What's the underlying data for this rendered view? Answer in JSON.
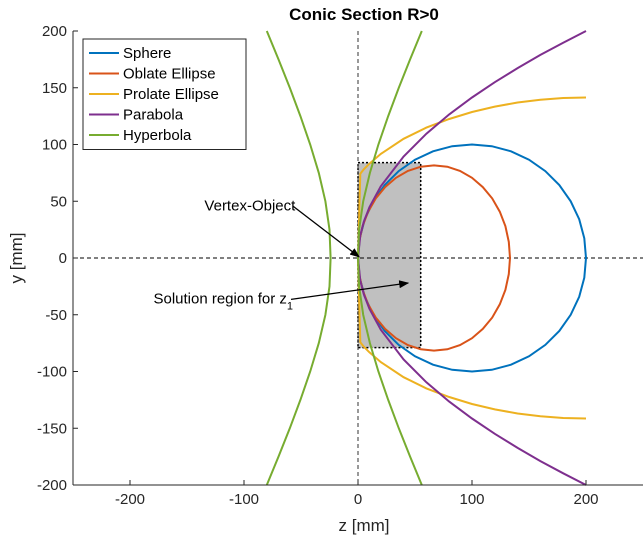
{
  "chart_data": {
    "type": "line",
    "title": "Conic Section R>0",
    "xlabel": "z [mm]",
    "ylabel": "y [mm]",
    "xlim": [
      -250,
      250
    ],
    "ylim": [
      -200,
      200
    ],
    "xticks": [
      -200,
      -100,
      0,
      100,
      200
    ],
    "yticks": [
      200,
      150,
      100,
      50,
      0,
      -50,
      -100,
      -150,
      -200
    ],
    "xtick_labels": [
      "-200",
      "-100",
      "0",
      "100",
      "200"
    ],
    "ytick_labels": [
      "200",
      "150",
      "100",
      "50",
      "0",
      "-50",
      "-100",
      "-150",
      "-200"
    ],
    "grid": false,
    "legend_position": "top-left",
    "series": [
      {
        "name": "Sphere",
        "color": "#0072bd",
        "points": [
          [
            200,
            0
          ],
          [
            198.5,
            17.4
          ],
          [
            194,
            34.2
          ],
          [
            186.6,
            50
          ],
          [
            176.6,
            64.3
          ],
          [
            164.3,
            76.6
          ],
          [
            150,
            86.6
          ],
          [
            134.2,
            94
          ],
          [
            117.4,
            98.5
          ],
          [
            100,
            100
          ],
          [
            82.6,
            98.5
          ],
          [
            65.8,
            94
          ],
          [
            50,
            86.6
          ],
          [
            35.7,
            76.6
          ],
          [
            23.4,
            64.3
          ],
          [
            13.4,
            50
          ],
          [
            6,
            34.2
          ],
          [
            1.5,
            17.4
          ],
          [
            0,
            0
          ],
          [
            1.5,
            -17.4
          ],
          [
            6,
            -34.2
          ],
          [
            13.4,
            -50
          ],
          [
            23.4,
            -64.3
          ],
          [
            35.7,
            -76.6
          ],
          [
            50,
            -86.6
          ],
          [
            65.8,
            -94
          ],
          [
            82.6,
            -98.5
          ],
          [
            100,
            -100
          ],
          [
            117.4,
            -98.5
          ],
          [
            134.2,
            -94
          ],
          [
            150,
            -86.6
          ],
          [
            164.3,
            -76.6
          ],
          [
            176.6,
            -64.3
          ],
          [
            186.6,
            -50
          ],
          [
            194,
            -34.2
          ],
          [
            198.5,
            -17.4
          ],
          [
            200,
            0
          ]
        ]
      },
      {
        "name": "Oblate Ellipse",
        "color": "#d95319",
        "points": [
          [
            133.3,
            0
          ],
          [
            132.3,
            14.2
          ],
          [
            129.3,
            28
          ],
          [
            124.4,
            40.8
          ],
          [
            117.7,
            52.5
          ],
          [
            109.5,
            62.5
          ],
          [
            100,
            70.7
          ],
          [
            89.5,
            76.7
          ],
          [
            78.3,
            80.4
          ],
          [
            66.7,
            81.6
          ],
          [
            55.1,
            80.4
          ],
          [
            43.8,
            76.7
          ],
          [
            33.3,
            70.7
          ],
          [
            23.8,
            62.5
          ],
          [
            15.6,
            52.5
          ],
          [
            8.9,
            40.8
          ],
          [
            4,
            28
          ],
          [
            1,
            14.2
          ],
          [
            0,
            0
          ],
          [
            1,
            -14.2
          ],
          [
            4,
            -28
          ],
          [
            8.9,
            -40.8
          ],
          [
            15.6,
            -52.5
          ],
          [
            23.8,
            -62.5
          ],
          [
            33.3,
            -70.7
          ],
          [
            43.8,
            -76.7
          ],
          [
            55.1,
            -80.4
          ],
          [
            66.7,
            -81.6
          ],
          [
            78.3,
            -80.4
          ],
          [
            89.5,
            -76.7
          ],
          [
            100,
            -70.7
          ],
          [
            109.5,
            -62.5
          ],
          [
            117.7,
            -52.5
          ],
          [
            124.4,
            -40.8
          ],
          [
            129.3,
            -28
          ],
          [
            132.3,
            -14.2
          ],
          [
            133.3,
            0
          ]
        ]
      },
      {
        "name": "Prolate Ellipse",
        "color": "#edb120",
        "points": [
          [
            200,
            -141.4
          ],
          [
            180,
            -141
          ],
          [
            160,
            -139.5
          ],
          [
            140,
            -137
          ],
          [
            120,
            -133.4
          ],
          [
            100,
            -128.6
          ],
          [
            80,
            -122.5
          ],
          [
            60,
            -114.9
          ],
          [
            40,
            -105
          ],
          [
            20,
            -91.7
          ],
          [
            10,
            -83.1
          ],
          [
            5,
            -78.1
          ],
          [
            2,
            -74.3
          ],
          [
            0,
            0
          ],
          [
            2,
            74.3
          ],
          [
            5,
            78.1
          ],
          [
            10,
            83.1
          ],
          [
            20,
            91.7
          ],
          [
            40,
            105
          ],
          [
            60,
            114.9
          ],
          [
            80,
            122.5
          ],
          [
            100,
            128.6
          ],
          [
            120,
            133.4
          ],
          [
            140,
            137
          ],
          [
            160,
            139.5
          ],
          [
            180,
            141
          ],
          [
            200,
            141.4
          ]
        ]
      },
      {
        "name": "Parabola",
        "color": "#7e2f8e",
        "points": [
          [
            200,
            -200
          ],
          [
            180,
            -189.7
          ],
          [
            160,
            -178.9
          ],
          [
            140,
            -167.3
          ],
          [
            120,
            -154.9
          ],
          [
            100,
            -141.4
          ],
          [
            80,
            -126.5
          ],
          [
            60,
            -109.5
          ],
          [
            40,
            -89.4
          ],
          [
            20,
            -63.2
          ],
          [
            10,
            -44.7
          ],
          [
            5,
            -31.6
          ],
          [
            2,
            -20
          ],
          [
            0,
            0
          ],
          [
            2,
            20
          ],
          [
            5,
            31.6
          ],
          [
            10,
            44.7
          ],
          [
            20,
            63.2
          ],
          [
            40,
            89.4
          ],
          [
            60,
            109.5
          ],
          [
            80,
            126.5
          ],
          [
            100,
            141.4
          ],
          [
            120,
            154.9
          ],
          [
            140,
            167.3
          ],
          [
            160,
            178.9
          ],
          [
            180,
            189.7
          ],
          [
            200,
            200
          ]
        ]
      },
      {
        "name": "Hyperbola",
        "color": "#77ac30",
        "points": [
          [
            -80,
            200
          ],
          [
            -69.7,
            175
          ],
          [
            -59.8,
            150
          ],
          [
            -50.5,
            125
          ],
          [
            -41.9,
            100
          ],
          [
            -34.4,
            75
          ],
          [
            -28.6,
            50
          ],
          [
            -25,
            25
          ],
          [
            -24,
            0
          ],
          [
            -25,
            -25
          ],
          [
            -28.6,
            -50
          ],
          [
            -34.4,
            -75
          ],
          [
            -41.9,
            -100
          ],
          [
            -50.5,
            -125
          ],
          [
            -59.8,
            -150
          ],
          [
            -69.7,
            -175
          ],
          [
            -80,
            -200
          ]
        ]
      },
      {
        "name": "Hyperbola",
        "color": "#77ac30",
        "legend": false,
        "points": [
          [
            56,
            200
          ],
          [
            45.7,
            175
          ],
          [
            35.8,
            150
          ],
          [
            26.5,
            125
          ],
          [
            17.9,
            100
          ],
          [
            10.4,
            75
          ],
          [
            4.6,
            50
          ],
          [
            1,
            25
          ],
          [
            0,
            0
          ],
          [
            1,
            -25
          ],
          [
            4.6,
            -50
          ],
          [
            10.4,
            -75
          ],
          [
            17.9,
            -100
          ],
          [
            26.5,
            -125
          ],
          [
            35.8,
            -150
          ],
          [
            45.7,
            -175
          ],
          [
            56,
            -200
          ]
        ]
      }
    ],
    "reference_lines": [
      {
        "axis": "x",
        "value": 0,
        "style": "dashed",
        "color": "#333333"
      },
      {
        "axis": "y",
        "value": 0,
        "style": "dashed",
        "color": "#000000"
      }
    ],
    "region": {
      "z": [
        0,
        55
      ],
      "y": [
        -79,
        84
      ],
      "fill": "#c0c0c0",
      "border": "dotted"
    },
    "annotations": [
      {
        "text": "Vertex-Object",
        "text_at": [
          -55,
          42
        ],
        "arrow_to": [
          1,
          1
        ]
      },
      {
        "text": "Solution region for z",
        "subscript": "1",
        "text_at": [
          -57,
          -40
        ],
        "arrow_to": [
          44,
          -22
        ]
      }
    ]
  }
}
